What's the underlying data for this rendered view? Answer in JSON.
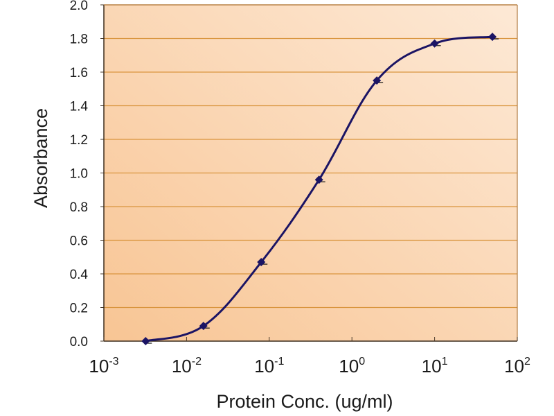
{
  "chart_data": {
    "type": "line",
    "title": "",
    "xlabel": "Protein Conc. (ug/ml)",
    "ylabel": "Absorbance",
    "x_scale": "log",
    "xlim_log10": [
      -3,
      2
    ],
    "ylim": [
      0.0,
      2.0
    ],
    "grid": "horizontal",
    "legend": "none",
    "y_ticks": [
      "0.0",
      "0.2",
      "0.4",
      "0.6",
      "0.8",
      "1.0",
      "1.2",
      "1.4",
      "1.6",
      "1.8",
      "2.0"
    ],
    "x_ticks": [
      {
        "base": "10",
        "exp": "-3"
      },
      {
        "base": "10",
        "exp": "-2"
      },
      {
        "base": "10",
        "exp": "-1"
      },
      {
        "base": "10",
        "exp": "0"
      },
      {
        "base": "10",
        "exp": "1"
      },
      {
        "base": "10",
        "exp": "2"
      }
    ],
    "series": [
      {
        "name": "Absorbance",
        "marker": "diamond",
        "x": [
          0.0032,
          0.016,
          0.08,
          0.4,
          2,
          10,
          50
        ],
        "y": [
          0.0,
          0.09,
          0.47,
          0.96,
          1.55,
          1.77,
          1.81
        ]
      }
    ],
    "colors": {
      "line": "#1B1464",
      "grid": "#D9953E",
      "axis": "#4a3a2a",
      "plot_bg_start": "#F8C594",
      "plot_bg_end": "#FDE9D6"
    }
  }
}
